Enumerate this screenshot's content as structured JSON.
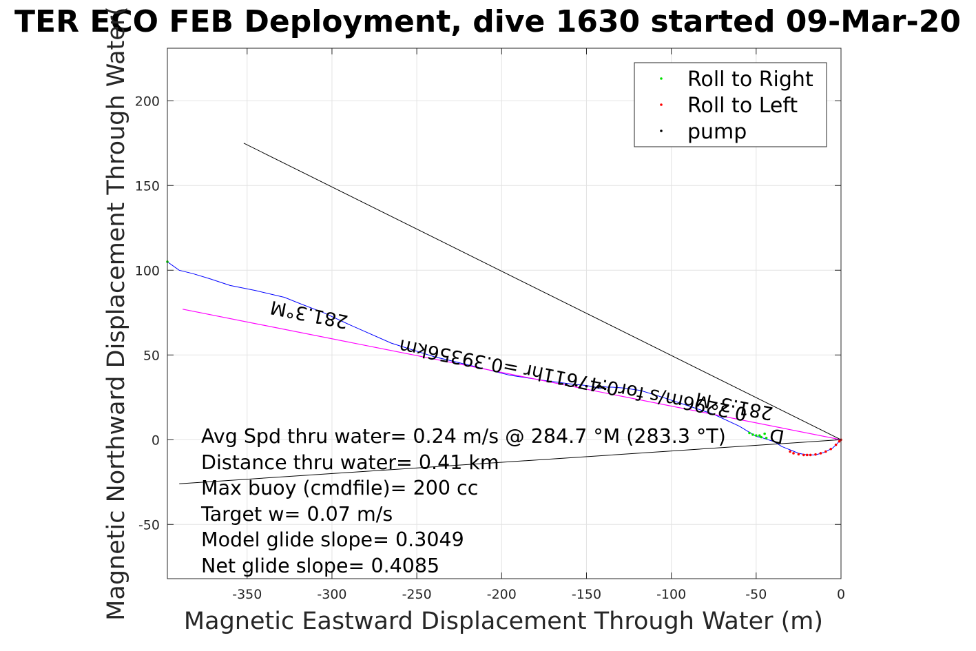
{
  "chart_data": {
    "type": "line",
    "title": "TER ECO FEB Deployment, dive 1630 started 09-Mar-20",
    "xlabel": "Magnetic Eastward Displacement Through Water (m)",
    "ylabel": "Magnetic Northward Displacement Through Water(",
    "xlim": [
      -397,
      0
    ],
    "ylim": [
      -82,
      231
    ],
    "xticks": [
      -350,
      -300,
      -250,
      -200,
      -150,
      -100,
      -50,
      0
    ],
    "yticks": [
      -50,
      0,
      50,
      100,
      150,
      200
    ],
    "grid": true,
    "legend_position": "top-right",
    "legend": [
      {
        "label": "Roll to Right",
        "color": "#00e000"
      },
      {
        "label": "Roll to Left",
        "color": "#ff0000"
      },
      {
        "label": "pump",
        "color": "#000000"
      }
    ],
    "series": [
      {
        "color": "#0000ff",
        "x": [
          0,
          -2,
          -5,
          -10,
          -15,
          -20,
          -25,
          -30,
          -35,
          -38,
          -40,
          -43,
          -46,
          -50,
          -60,
          -75,
          -90,
          -105,
          -118,
          -128,
          -135,
          -138,
          -140,
          -142,
          -145,
          -150,
          -160,
          -175,
          -195,
          -215,
          -240,
          -265,
          -290,
          -305,
          -318,
          -328,
          -345,
          -360,
          -372,
          -382,
          -390,
          -397
        ],
        "y": [
          0,
          -2,
          -5,
          -7.5,
          -9,
          -9,
          -8,
          -6,
          -4,
          -2,
          -1,
          0,
          1,
          2,
          8,
          15,
          20,
          25,
          29,
          30.5,
          31,
          31,
          31.5,
          30,
          31,
          32,
          33,
          35,
          38,
          43,
          49,
          57,
          68,
          75,
          80,
          84,
          88,
          91,
          95,
          98,
          100,
          105
        ]
      },
      {
        "color": "#000000",
        "role": "heading line",
        "x": [
          0,
          -352
        ],
        "y": [
          0,
          175
        ]
      },
      {
        "color": "#000000",
        "role": "drift line",
        "x": [
          0,
          -390
        ],
        "y": [
          0,
          -26
        ]
      },
      {
        "color": "#ff00ff",
        "role": "net track",
        "x": [
          0,
          -388
        ],
        "y": [
          0,
          77
        ]
      }
    ],
    "markers": [
      {
        "label": "Roll to Right",
        "x": [
          -397,
          -48,
          -45,
          -44,
          -47,
          -50,
          -52,
          -54
        ],
        "y": [
          105,
          2.5,
          3.5,
          1,
          1.5,
          2.5,
          3,
          4
        ]
      },
      {
        "label": "Roll to Left",
        "x": [
          0,
          -1,
          -3,
          -6,
          -9,
          -12,
          -15,
          -18,
          -20,
          -22,
          -25,
          -28,
          -30
        ],
        "y": [
          0,
          -1,
          -3,
          -5.5,
          -7,
          -8,
          -8.7,
          -9,
          -9,
          -9,
          -8.6,
          -8,
          -7
        ]
      },
      {
        "label": "pump",
        "x": [
          -137,
          -139,
          -140,
          -141,
          -142,
          -143,
          -146,
          -150,
          -156,
          -162
        ],
        "y": [
          29,
          30,
          30.5,
          31,
          31.5,
          31,
          31,
          31.5,
          32,
          32.5
        ]
      }
    ],
    "annotations": {
      "heading_top": "281.3°M",
      "heading_mid": "281.3°M",
      "track_summary": "0.2296m/s for0.47611hr =0.39356km",
      "track_summary_tail": "D"
    },
    "stats": [
      "Avg Spd thru water=  0.24 m/s @ 284.7 °M (283.3 °T)",
      "Distance thru water=  0.41 km",
      "Max buoy (cmdfile)= 200 cc",
      "Target w= 0.07 m/s",
      "Model glide slope= 0.3049",
      "Net glide slope= 0.4085"
    ]
  }
}
